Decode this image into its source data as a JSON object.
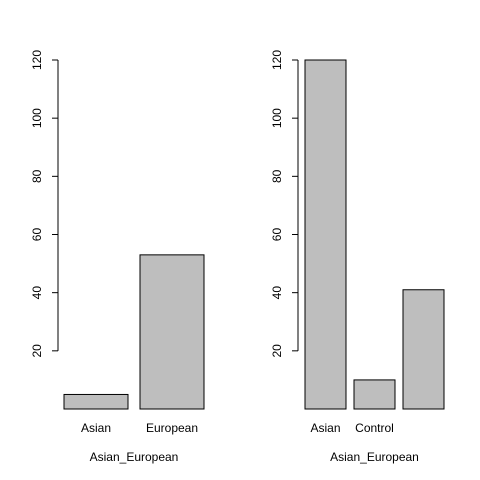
{
  "chart_data": [
    {
      "type": "bar",
      "categories": [
        "Asian",
        "European"
      ],
      "values": [
        5,
        53
      ],
      "xlabel": "Asian_European",
      "ylabel": "",
      "yticks": [
        20,
        40,
        60,
        80,
        100,
        120
      ],
      "ylim": [
        0,
        120
      ],
      "grid": false,
      "bar_color": "#bebebe"
    },
    {
      "type": "bar",
      "categories": [
        "Asian",
        "Control",
        ""
      ],
      "values": [
        120,
        10,
        41
      ],
      "xlabel": "Asian_European",
      "ylabel": "",
      "yticks": [
        20,
        40,
        60,
        80,
        100,
        120
      ],
      "ylim": [
        0,
        120
      ],
      "grid": false,
      "bar_color": "#bebebe"
    }
  ]
}
